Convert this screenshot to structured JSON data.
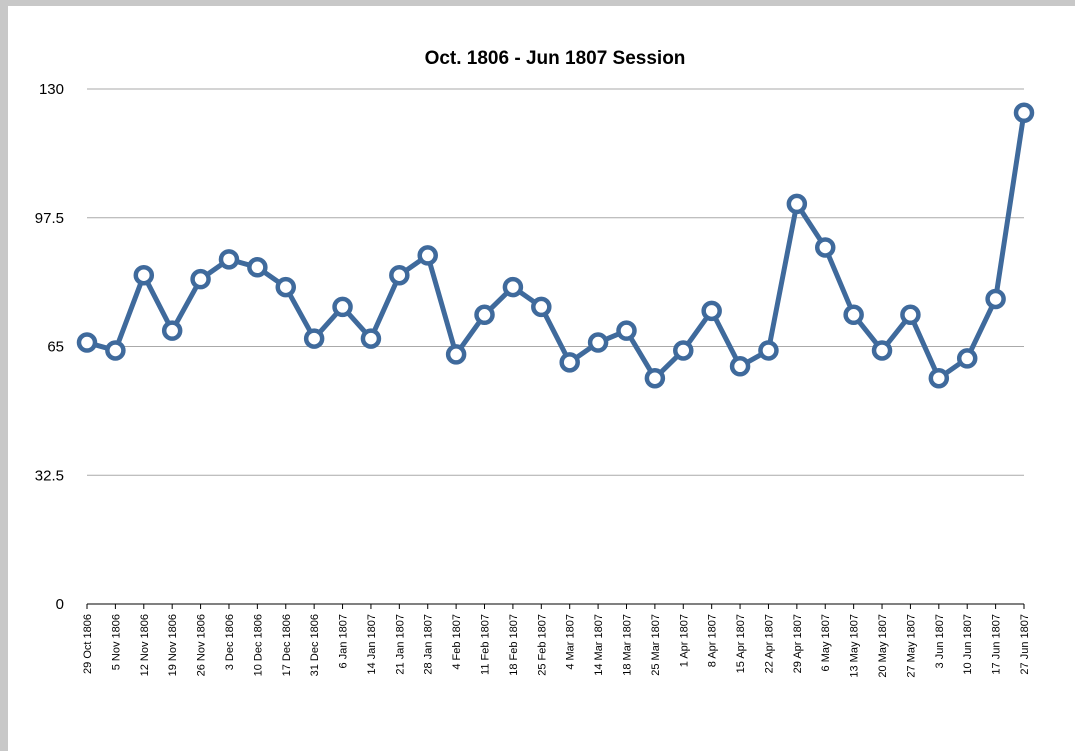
{
  "chart_data": {
    "type": "line",
    "title": "Oct. 1806 - Jun 1807 Session",
    "categories": [
      "29 Oct 1806",
      "5 Nov 1806",
      "12 Nov 1806",
      "19 Nov 1806",
      "26 Nov 1806",
      "3 Dec 1806",
      "10 Dec 1806",
      "17 Dec 1806",
      "31 Dec 1806",
      "6 Jan 1807",
      "14 Jan 1807",
      "21 Jan 1807",
      "28 Jan 1807",
      "4 Feb 1807",
      "11 Feb 1807",
      "18 Feb 1807",
      "25 Feb 1807",
      "4 Mar 1807",
      "14 Mar 1807",
      "18 Mar 1807",
      "25 Mar 1807",
      "1 Apr 1807",
      "8 Apr 1807",
      "15 Apr 1807",
      "22 Apr 1807",
      "29 Apr 1807",
      "6 May 1807",
      "13 May 1807",
      "20 May 1807",
      "27 May 1807",
      "3 Jun 1807",
      "10 Jun 1807",
      "17 Jun 1807",
      "27 Jun 1807"
    ],
    "values": [
      66,
      64,
      83,
      69,
      82,
      87,
      85,
      80,
      67,
      75,
      67,
      83,
      88,
      63,
      73,
      80,
      75,
      61,
      66,
      69,
      57,
      64,
      74,
      60,
      64,
      101,
      90,
      73,
      64,
      73,
      57,
      62,
      77,
      124
    ],
    "color": "#3f6a9c",
    "ylim": [
      0,
      130
    ],
    "yticks": [
      0,
      32.5,
      65,
      97.5,
      130
    ],
    "grid": true
  }
}
